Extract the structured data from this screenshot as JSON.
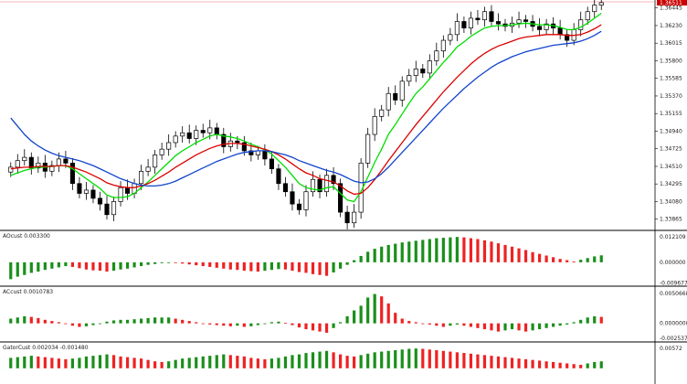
{
  "colors": {
    "background": "#ffffff",
    "up": "#1a8f1a",
    "down": "#ee2222",
    "ma_fast": "#00dd00",
    "ma_mid": "#dd0000",
    "ma_slow": "#1144cc",
    "price_tag": "#cc0000",
    "candle": "#000000"
  },
  "price_tag": "1.36511",
  "chart_data": [
    {
      "type": "candlestick",
      "name": "main",
      "title": "",
      "price_axis": [
        "1.36445",
        "1.36230",
        "1.36015",
        "1.35800",
        "1.35585",
        "1.35370",
        "1.35155",
        "1.34940",
        "1.34725",
        "1.34510",
        "1.34295",
        "1.34080",
        "1.33865"
      ],
      "ylim": [
        1.3375,
        1.3652
      ],
      "closes": [
        1.345,
        1.3458,
        1.3462,
        1.3449,
        1.3455,
        1.3445,
        1.3452,
        1.346,
        1.3455,
        1.343,
        1.3418,
        1.3422,
        1.3412,
        1.3405,
        1.3392,
        1.3408,
        1.3425,
        1.3418,
        1.343,
        1.3445,
        1.345,
        1.3465,
        1.3472,
        1.348,
        1.3488,
        1.3492,
        1.3485,
        1.3495,
        1.3492,
        1.3498,
        1.349,
        1.3475,
        1.3482,
        1.348,
        1.347,
        1.3465,
        1.347,
        1.346,
        1.3448,
        1.343,
        1.342,
        1.3405,
        1.3398,
        1.342,
        1.3435,
        1.342,
        1.344,
        1.343,
        1.3395,
        1.3382,
        1.3395,
        1.3455,
        1.349,
        1.3512,
        1.352,
        1.354,
        1.3532,
        1.3555,
        1.3562,
        1.357,
        1.3565,
        1.358,
        1.3592,
        1.3605,
        1.3612,
        1.3628,
        1.362,
        1.3632,
        1.363,
        1.364,
        1.3628,
        1.3625,
        1.3622,
        1.3626,
        1.363,
        1.3628,
        1.3622,
        1.3618,
        1.3625,
        1.362,
        1.3612,
        1.3605,
        1.3618,
        1.363,
        1.364,
        1.3648,
        1.3651
      ],
      "series": [
        {
          "name": "",
          "style": "ma_fast",
          "values": [
            1.344,
            1.3443,
            1.3446,
            1.3448,
            1.345,
            1.345,
            1.3451,
            1.3452,
            1.3452,
            1.3448,
            1.3442,
            1.3436,
            1.343,
            1.3424,
            1.3416,
            1.3413,
            1.3413,
            1.3414,
            1.3418,
            1.3425,
            1.3432,
            1.344,
            1.3448,
            1.3456,
            1.3464,
            1.347,
            1.3475,
            1.348,
            1.3484,
            1.3488,
            1.349,
            1.3488,
            1.3487,
            1.3485,
            1.3482,
            1.3478,
            1.3475,
            1.3471,
            1.3466,
            1.3458,
            1.345,
            1.344,
            1.343,
            1.3425,
            1.3423,
            1.3422,
            1.3425,
            1.3426,
            1.3418,
            1.341,
            1.3408,
            1.342,
            1.3438,
            1.3456,
            1.3472,
            1.349,
            1.3502,
            1.3515,
            1.3528,
            1.354,
            1.3548,
            1.3558,
            1.3568,
            1.3578,
            1.3587,
            1.3597,
            1.3603,
            1.361,
            1.3615,
            1.362,
            1.3622,
            1.3623,
            1.3623,
            1.3624,
            1.3625,
            1.3626,
            1.3625,
            1.3624,
            1.3624,
            1.3623,
            1.3621,
            1.3618,
            1.3618,
            1.3621,
            1.3626,
            1.3632,
            1.3638
          ]
        },
        {
          "name": "",
          "style": "ma_mid",
          "values": [
            1.3448,
            1.3449,
            1.345,
            1.345,
            1.3451,
            1.3451,
            1.3451,
            1.3452,
            1.3452,
            1.345,
            1.3447,
            1.3444,
            1.344,
            1.3436,
            1.3431,
            1.3428,
            1.3426,
            1.3425,
            1.3425,
            1.3427,
            1.343,
            1.3434,
            1.3439,
            1.3444,
            1.345,
            1.3455,
            1.346,
            1.3465,
            1.3469,
            1.3473,
            1.3476,
            1.3478,
            1.3479,
            1.3479,
            1.3478,
            1.3476,
            1.3474,
            1.3472,
            1.3469,
            1.3465,
            1.346,
            1.3454,
            1.3448,
            1.3443,
            1.344,
            1.3436,
            1.3434,
            1.3432,
            1.3427,
            1.3421,
            1.3417,
            1.3418,
            1.3425,
            1.3435,
            1.3446,
            1.3458,
            1.3469,
            1.348,
            1.3491,
            1.3502,
            1.3512,
            1.3522,
            1.3532,
            1.3542,
            1.3551,
            1.356,
            1.3568,
            1.3576,
            1.3583,
            1.3589,
            1.3594,
            1.3598,
            1.3601,
            1.3604,
            1.3607,
            1.3609,
            1.361,
            1.3611,
            1.3612,
            1.3612,
            1.3612,
            1.3611,
            1.3611,
            1.3612,
            1.3615,
            1.3619,
            1.3624
          ]
        },
        {
          "name": "",
          "style": "ma_slow",
          "values": [
            1.351,
            1.35,
            1.349,
            1.3482,
            1.3476,
            1.3471,
            1.3467,
            1.3464,
            1.3462,
            1.346,
            1.3458,
            1.3455,
            1.3452,
            1.3448,
            1.3444,
            1.344,
            1.3436,
            1.3433,
            1.343,
            1.3428,
            1.3427,
            1.3427,
            1.3428,
            1.343,
            1.3433,
            1.3437,
            1.3441,
            1.3445,
            1.3449,
            1.3453,
            1.3457,
            1.346,
            1.3463,
            1.3466,
            1.3468,
            1.3469,
            1.347,
            1.347,
            1.3469,
            1.3467,
            1.3465,
            1.3462,
            1.3458,
            1.3455,
            1.3452,
            1.3449,
            1.3446,
            1.3444,
            1.3441,
            1.3437,
            1.3433,
            1.3431,
            1.3432,
            1.3436,
            1.3442,
            1.345,
            1.3459,
            1.3468,
            1.3477,
            1.3486,
            1.3495,
            1.3504,
            1.3513,
            1.3522,
            1.353,
            1.3538,
            1.3546,
            1.3553,
            1.356,
            1.3566,
            1.3572,
            1.3577,
            1.3581,
            1.3585,
            1.3588,
            1.3591,
            1.3593,
            1.3595,
            1.3597,
            1.3599,
            1.36,
            1.3601,
            1.3602,
            1.3604,
            1.3607,
            1.3611,
            1.3616
          ]
        }
      ]
    },
    {
      "type": "bar",
      "name": "AOcust",
      "label": "AOcust 0.003300",
      "axis_labels": [
        "0.012109",
        "0.000000",
        "-0.009677"
      ],
      "ylim": [
        -0.01,
        0.0125
      ],
      "values": [
        -0.008,
        -0.0068,
        -0.006,
        -0.005,
        -0.0044,
        -0.0036,
        -0.003,
        -0.0024,
        -0.0018,
        -0.0022,
        -0.0028,
        -0.0034,
        -0.0038,
        -0.004,
        -0.0044,
        -0.004,
        -0.0034,
        -0.003,
        -0.0024,
        -0.0018,
        -0.0012,
        -0.0008,
        -0.0004,
        0.0,
        -0.0003,
        -0.0006,
        -0.001,
        -0.0014,
        -0.0018,
        -0.0022,
        -0.0026,
        -0.003,
        -0.0034,
        -0.0036,
        -0.004,
        -0.0042,
        -0.0044,
        -0.004,
        -0.0036,
        -0.0032,
        -0.0034,
        -0.004,
        -0.0046,
        -0.005,
        -0.0056,
        -0.006,
        -0.0064,
        -0.0048,
        -0.003,
        -0.0012,
        0.001,
        0.003,
        0.005,
        0.0064,
        0.0074,
        0.0082,
        0.0088,
        0.0094,
        0.0098,
        0.0102,
        0.0106,
        0.011,
        0.0114,
        0.0116,
        0.0118,
        0.012,
        0.0118,
        0.0114,
        0.011,
        0.0104,
        0.0098,
        0.009,
        0.0082,
        0.0074,
        0.0066,
        0.0058,
        0.0048,
        0.004,
        0.0032,
        0.0024,
        0.0016,
        0.001,
        0.0004,
        0.0012,
        0.002,
        0.0028,
        0.0033
      ]
    },
    {
      "type": "bar",
      "name": "ACcust",
      "label": "ACcust 0.0010783",
      "axis_labels": [
        "0.0050668",
        "0.0000000",
        "-0.0025373"
      ],
      "ylim": [
        -0.0027,
        0.0054
      ],
      "values": [
        0.0008,
        0.001,
        0.0012,
        0.0011,
        0.0009,
        0.0006,
        0.0004,
        0.0002,
        0.0,
        -0.0004,
        -0.0006,
        -0.0005,
        -0.0003,
        -0.0001,
        0.0003,
        0.0005,
        0.0006,
        0.0006,
        0.0007,
        0.0008,
        0.0009,
        0.001,
        0.001,
        0.001,
        0.0008,
        0.0006,
        0.0004,
        0.0002,
        0.0,
        -0.0002,
        -0.0003,
        -0.0004,
        -0.0005,
        -0.0004,
        -0.0006,
        -0.0005,
        -0.0003,
        -0.0001,
        0.0002,
        0.0003,
        0.0001,
        -0.0003,
        -0.0007,
        -0.001,
        -0.0012,
        -0.0014,
        -0.0016,
        -0.0008,
        0.0002,
        0.0012,
        0.0022,
        0.003,
        0.0044,
        0.005,
        0.0046,
        0.0034,
        0.0018,
        0.0008,
        0.0004,
        0.0002,
        0.0,
        -0.0002,
        -0.0004,
        -0.0006,
        -0.0004,
        -0.0002,
        -0.0004,
        -0.0006,
        -0.0008,
        -0.001,
        -0.0012,
        -0.0014,
        -0.0012,
        -0.001,
        -0.0012,
        -0.0014,
        -0.0012,
        -0.001,
        -0.0008,
        -0.0006,
        -0.0004,
        -0.0002,
        0.0002,
        0.0006,
        0.001,
        0.0012,
        0.0011
      ]
    },
    {
      "type": "bar",
      "name": "GatorCust",
      "label": "GatorCust 0.002034 -0.001480",
      "axis_labels": [
        "0.00572"
      ],
      "ylim": [
        -0.004,
        0.006
      ],
      "values": [
        0.003,
        0.0032,
        0.0034,
        0.0036,
        0.0034,
        0.0032,
        0.003,
        0.0028,
        0.0026,
        0.0028,
        0.003,
        0.0034,
        0.0036,
        0.0038,
        0.004,
        0.0038,
        0.0034,
        0.0032,
        0.003,
        0.0028,
        0.0024,
        0.002,
        0.0018,
        0.002,
        0.0024,
        0.0028,
        0.003,
        0.0032,
        0.0034,
        0.0036,
        0.0038,
        0.004,
        0.0038,
        0.0036,
        0.0034,
        0.003,
        0.0028,
        0.0026,
        0.0028,
        0.003,
        0.0034,
        0.0038,
        0.004,
        0.0044,
        0.0046,
        0.0048,
        0.005,
        0.0046,
        0.004,
        0.0036,
        0.0034,
        0.0038,
        0.0042,
        0.0046,
        0.0048,
        0.005,
        0.0052,
        0.0054,
        0.0056,
        0.0057,
        0.0056,
        0.0054,
        0.0052,
        0.005,
        0.0048,
        0.0046,
        0.0044,
        0.0042,
        0.004,
        0.0038,
        0.0036,
        0.0034,
        0.0032,
        0.003,
        0.0028,
        0.0026,
        0.0024,
        0.0022,
        0.002,
        0.0018,
        0.0016,
        0.0014,
        0.0012,
        0.001,
        0.0014,
        0.0018,
        0.002
      ]
    }
  ]
}
